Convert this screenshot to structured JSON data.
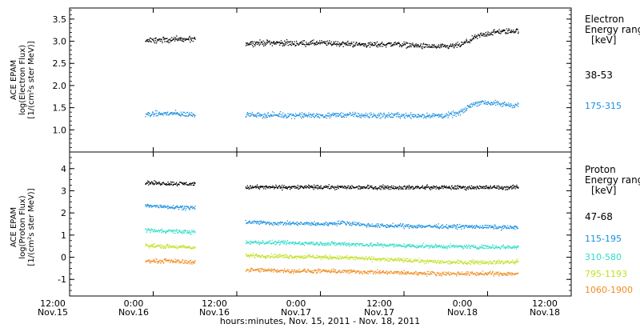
{
  "chart_data": [
    {
      "type": "scatter",
      "panel": "electron",
      "ylabel_lines": [
        "ACE EPAM",
        "log(Electron Flux)",
        "[1/(cm²s ster MeV)]"
      ],
      "ylim": [
        0.5,
        3.75
      ],
      "yticks": [
        "1.0",
        "1.5",
        "2.0",
        "2.5",
        "3.0",
        "3.5"
      ],
      "legend_title": [
        "Electron",
        "Energy range",
        "[keV]"
      ],
      "series": [
        {
          "name": "38-53",
          "color": "#000000",
          "gaps": [
            [
              0.0,
              0.75
            ],
            [
              1.25,
              1.75
            ],
            [
              4.48,
              5.0
            ]
          ],
          "points": [
            [
              0.75,
              3.02
            ],
            [
              1.0,
              3.05
            ],
            [
              1.25,
              3.05
            ],
            [
              1.75,
              2.96
            ],
            [
              2.0,
              2.98
            ],
            [
              2.25,
              2.96
            ],
            [
              2.5,
              2.97
            ],
            [
              2.75,
              2.95
            ],
            [
              3.0,
              2.93
            ],
            [
              3.25,
              2.95
            ],
            [
              3.5,
              2.9
            ],
            [
              3.75,
              2.88
            ],
            [
              3.9,
              2.93
            ],
            [
              4.0,
              3.05
            ],
            [
              4.1,
              3.15
            ],
            [
              4.25,
              3.22
            ],
            [
              4.47,
              3.25
            ]
          ]
        },
        {
          "name": "175-315",
          "color": "#1a8fe0",
          "gaps": [
            [
              0.0,
              0.75
            ],
            [
              1.25,
              1.75
            ],
            [
              4.48,
              5.0
            ]
          ],
          "points": [
            [
              0.75,
              1.36
            ],
            [
              1.0,
              1.38
            ],
            [
              1.25,
              1.35
            ],
            [
              1.75,
              1.35
            ],
            [
              2.0,
              1.34
            ],
            [
              2.25,
              1.34
            ],
            [
              2.5,
              1.33
            ],
            [
              2.75,
              1.35
            ],
            [
              3.0,
              1.33
            ],
            [
              3.25,
              1.34
            ],
            [
              3.5,
              1.33
            ],
            [
              3.75,
              1.33
            ],
            [
              3.9,
              1.4
            ],
            [
              4.0,
              1.58
            ],
            [
              4.1,
              1.64
            ],
            [
              4.25,
              1.6
            ],
            [
              4.47,
              1.56
            ]
          ]
        }
      ]
    },
    {
      "type": "scatter",
      "panel": "proton",
      "ylabel_lines": [
        "ACE EPAM",
        "log(Proton Flux)",
        "[1/(cm²s ster MeV)]"
      ],
      "ylim": [
        -1.75,
        4.75
      ],
      "yticks": [
        "-1",
        "0",
        "1",
        "2",
        "3",
        "4"
      ],
      "legend_title": [
        "Proton",
        "Energy range",
        "[keV]"
      ],
      "series": [
        {
          "name": "47-68",
          "color": "#000000",
          "gaps": [
            [
              0.0,
              0.75
            ],
            [
              1.25,
              1.75
            ],
            [
              4.48,
              5.0
            ]
          ],
          "points": [
            [
              0.75,
              3.38
            ],
            [
              1.0,
              3.35
            ],
            [
              1.25,
              3.33
            ],
            [
              1.75,
              3.18
            ],
            [
              2.5,
              3.18
            ],
            [
              3.0,
              3.18
            ],
            [
              3.5,
              3.17
            ],
            [
              4.0,
              3.17
            ],
            [
              4.47,
              3.17
            ]
          ]
        },
        {
          "name": "115-195",
          "color": "#1a8fe0",
          "gaps": [
            [
              0.0,
              0.75
            ],
            [
              1.25,
              1.75
            ],
            [
              4.48,
              5.0
            ]
          ],
          "points": [
            [
              0.75,
              2.35
            ],
            [
              1.0,
              2.3
            ],
            [
              1.25,
              2.25
            ],
            [
              1.75,
              1.62
            ],
            [
              2.0,
              1.56
            ],
            [
              2.5,
              1.52
            ],
            [
              2.75,
              1.58
            ],
            [
              3.0,
              1.45
            ],
            [
              3.5,
              1.42
            ],
            [
              4.0,
              1.4
            ],
            [
              4.47,
              1.36
            ]
          ]
        },
        {
          "name": "310-580",
          "color": "#30dcc8",
          "gaps": [
            [
              0.0,
              0.75
            ],
            [
              1.25,
              1.75
            ],
            [
              4.48,
              5.0
            ]
          ],
          "points": [
            [
              0.75,
              1.25
            ],
            [
              1.0,
              1.2
            ],
            [
              1.25,
              1.15
            ],
            [
              1.75,
              0.7
            ],
            [
              2.25,
              0.66
            ],
            [
              2.75,
              0.62
            ],
            [
              3.25,
              0.55
            ],
            [
              3.75,
              0.5
            ],
            [
              4.47,
              0.48
            ]
          ]
        },
        {
          "name": "795-1193",
          "color": "#c0e020",
          "gaps": [
            [
              0.0,
              0.75
            ],
            [
              1.25,
              1.75
            ],
            [
              4.48,
              5.0
            ]
          ],
          "points": [
            [
              0.75,
              0.55
            ],
            [
              1.0,
              0.5
            ],
            [
              1.25,
              0.45
            ],
            [
              1.75,
              0.1
            ],
            [
              2.25,
              0.05
            ],
            [
              2.75,
              0.0
            ],
            [
              3.25,
              -0.1
            ],
            [
              3.75,
              -0.2
            ],
            [
              4.47,
              -0.2
            ]
          ]
        },
        {
          "name": "1060-1900",
          "color": "#f08c1e",
          "gaps": [
            [
              0.0,
              0.75
            ],
            [
              1.25,
              1.75
            ],
            [
              4.48,
              5.0
            ]
          ],
          "points": [
            [
              0.75,
              -0.15
            ],
            [
              1.0,
              -0.15
            ],
            [
              1.25,
              -0.2
            ],
            [
              1.75,
              -0.55
            ],
            [
              2.25,
              -0.6
            ],
            [
              2.75,
              -0.62
            ],
            [
              3.25,
              -0.68
            ],
            [
              3.75,
              -0.72
            ],
            [
              4.47,
              -0.72
            ]
          ]
        }
      ]
    }
  ],
  "x_axis": {
    "xlim": [
      0,
      5
    ],
    "ticks": [
      {
        "time": "12:00",
        "date": "Nov.15"
      },
      {
        "time": "0:00",
        "date": "Nov.16"
      },
      {
        "time": "12:00",
        "date": "Nov.16"
      },
      {
        "time": "0:00",
        "date": "Nov.17"
      },
      {
        "time": "12:00",
        "date": "Nov.17"
      },
      {
        "time": "0:00",
        "date": "Nov.18"
      },
      {
        "time": "12:00",
        "date": "Nov.18"
      }
    ],
    "label": "hours:minutes, Nov. 15, 2011 - Nov. 18, 2011"
  }
}
